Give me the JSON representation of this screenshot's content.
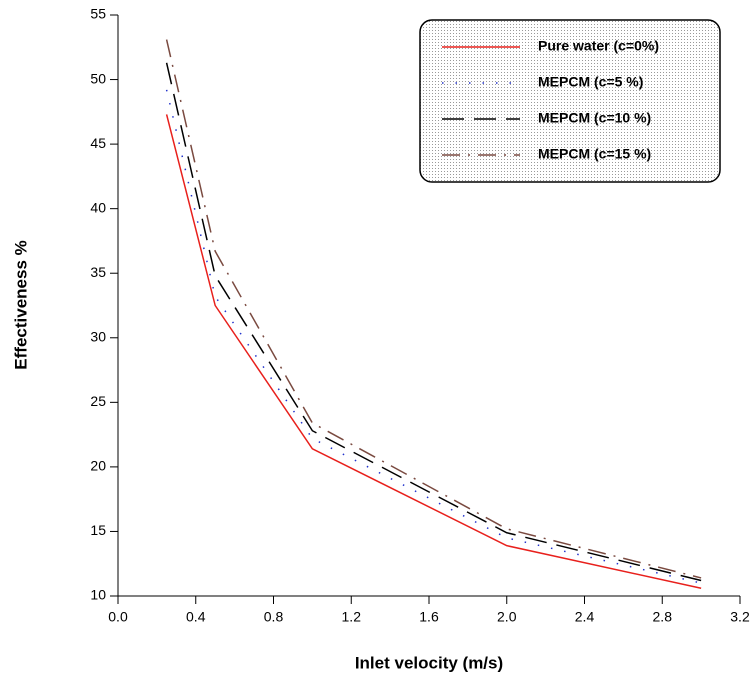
{
  "chart_data": {
    "type": "line",
    "x_label": "Inlet velocity (m/s)",
    "y_label": "Effectiveness %",
    "x": [
      0.25,
      0.5,
      1.0,
      2.0,
      3.0
    ],
    "series": [
      {
        "name": "Pure water (c=0%)",
        "color": "#e8201c",
        "style": "solid",
        "values": [
          47.3,
          32.5,
          21.4,
          13.9,
          10.6
        ]
      },
      {
        "name": "MEPCM (c=5 %)",
        "color": "#2233cc",
        "style": "dotted",
        "values": [
          49.2,
          33.2,
          22.2,
          14.5,
          11.0
        ]
      },
      {
        "name": "MEPCM (c=10 %)",
        "color": "#000000",
        "style": "dashed",
        "values": [
          51.3,
          34.8,
          22.8,
          14.9,
          11.2
        ]
      },
      {
        "name": "MEPCM (c=15 %)",
        "color": "#7a4a40",
        "style": "dashdot",
        "values": [
          53.1,
          36.7,
          23.4,
          15.2,
          11.4
        ]
      }
    ],
    "xlim": [
      0,
      3.2
    ],
    "xticks": [
      {
        "value": 0,
        "label": "0.0"
      },
      0.4,
      0.8,
      1.2,
      1.6,
      {
        "value": 2,
        "label": "2.0"
      },
      2.4,
      2.8,
      3.2
    ],
    "ylim": [
      10,
      55
    ],
    "yticks": [
      10,
      15,
      20,
      25,
      30,
      35,
      40,
      45,
      50,
      55
    ],
    "legend": "upper right"
  }
}
